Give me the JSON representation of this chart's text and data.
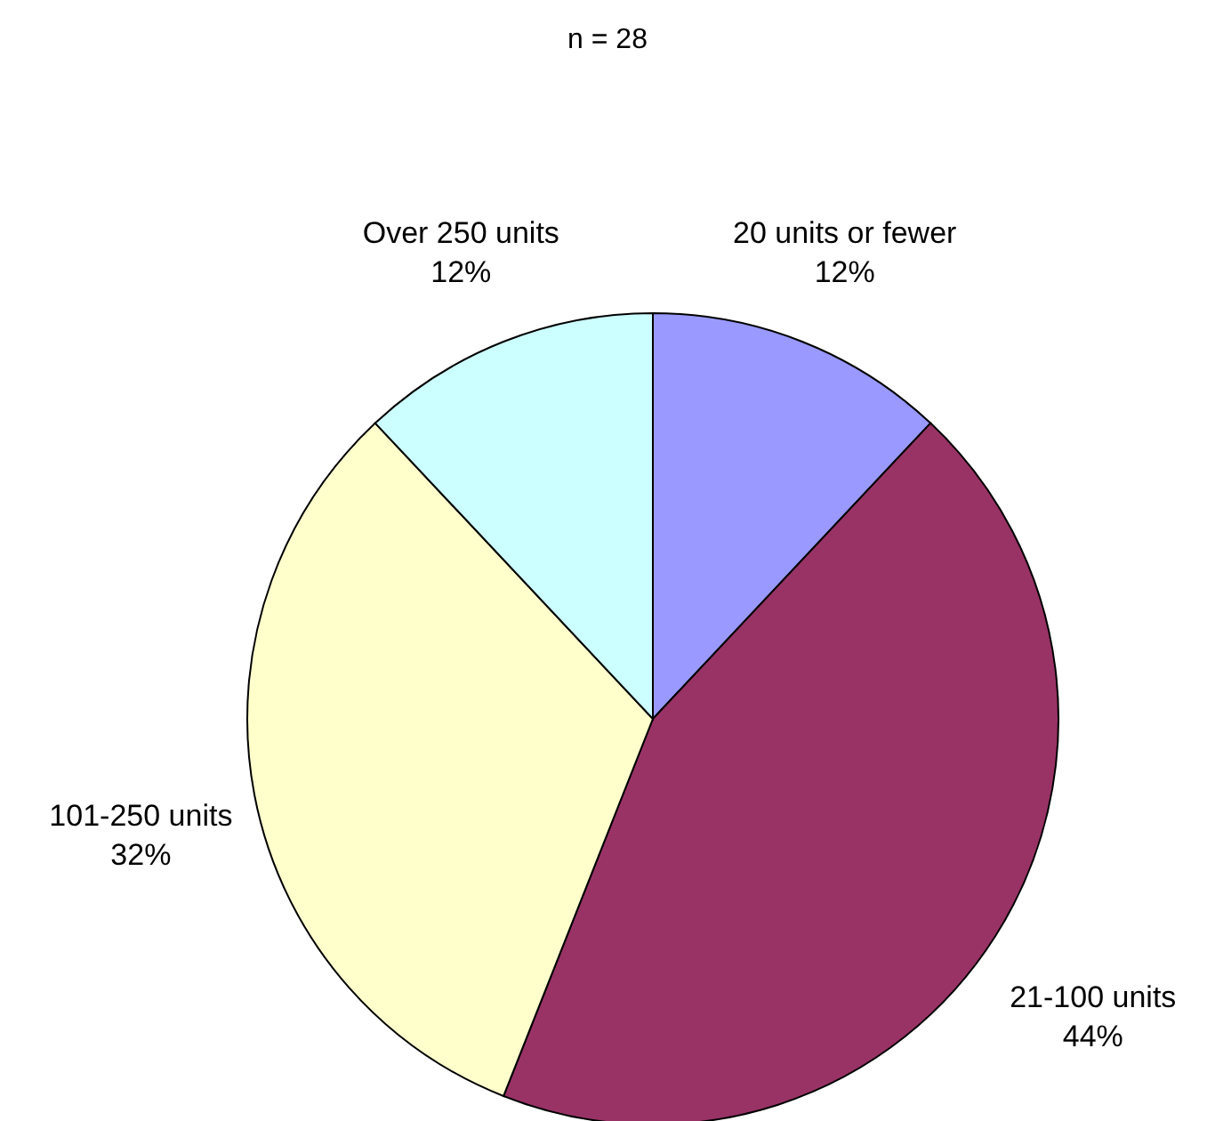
{
  "chart_data": {
    "type": "pie",
    "title": "n = 28",
    "categories": [
      "20 units or fewer",
      "21-100 units",
      "101-250 units",
      "Over 250 units"
    ],
    "values": [
      12,
      44,
      32,
      12
    ],
    "value_labels": [
      "12%",
      "44%",
      "32%",
      "12%"
    ],
    "colors": [
      "#9999ff",
      "#993366",
      "#ffffcc",
      "#ccffff"
    ],
    "legend": false
  }
}
